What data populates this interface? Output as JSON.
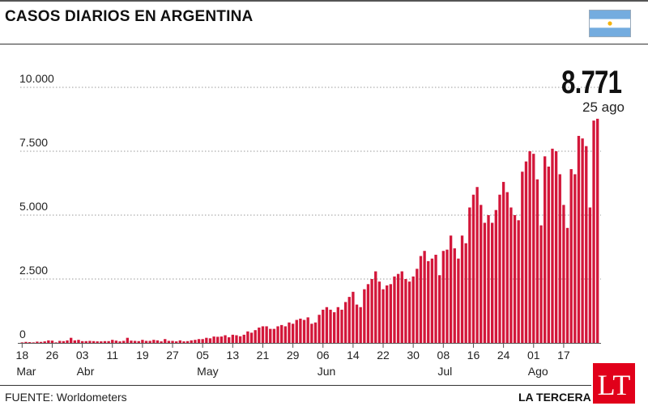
{
  "header": {
    "title": "CASOS DIARIOS EN ARGENTINA",
    "flag_icon": "argentina-flag-icon"
  },
  "annotation": {
    "value": "8.771",
    "date": "25 ago"
  },
  "footer": {
    "source": "FUENTE: Worldometers",
    "brand": "LA TERCERA",
    "logo_text": "LT"
  },
  "colors": {
    "bars": "#d3173a",
    "brand_red": "#e1001a",
    "flag_blue": "#74acdf",
    "flag_sun": "#f6b40e"
  },
  "chart_data": {
    "type": "bar",
    "title": "CASOS DIARIOS EN ARGENTINA",
    "xlabel": "",
    "ylabel": "",
    "ylim": [
      0,
      10000
    ],
    "grid": true,
    "legend": "none",
    "y_ticks": [
      {
        "value": 0,
        "label": "0"
      },
      {
        "value": 2500,
        "label": "2.500"
      },
      {
        "value": 5000,
        "label": "5.000"
      },
      {
        "value": 7500,
        "label": "7.500"
      },
      {
        "value": 10000,
        "label": "10.000"
      }
    ],
    "x_ticks": [
      {
        "index": 0,
        "label": "18"
      },
      {
        "index": 8,
        "label": "26"
      },
      {
        "index": 16,
        "label": "03"
      },
      {
        "index": 24,
        "label": "11"
      },
      {
        "index": 32,
        "label": "19"
      },
      {
        "index": 40,
        "label": "27"
      },
      {
        "index": 48,
        "label": "05"
      },
      {
        "index": 56,
        "label": "13"
      },
      {
        "index": 64,
        "label": "21"
      },
      {
        "index": 72,
        "label": "29"
      },
      {
        "index": 80,
        "label": "06"
      },
      {
        "index": 88,
        "label": "14"
      },
      {
        "index": 96,
        "label": "22"
      },
      {
        "index": 104,
        "label": "30"
      },
      {
        "index": 112,
        "label": "08"
      },
      {
        "index": 120,
        "label": "16"
      },
      {
        "index": 128,
        "label": "24"
      },
      {
        "index": 136,
        "label": "01"
      },
      {
        "index": 144,
        "label": "17"
      }
    ],
    "months": [
      {
        "index": 0,
        "label": "Mar"
      },
      {
        "index": 16,
        "label": "Abr"
      },
      {
        "index": 48,
        "label": "May"
      },
      {
        "index": 80,
        "label": "Jun"
      },
      {
        "index": 112,
        "label": "Jul"
      },
      {
        "index": 136,
        "label": "Ago"
      }
    ],
    "series": [
      {
        "values": [
          20,
          40,
          30,
          20,
          50,
          40,
          60,
          100,
          90,
          20,
          80,
          70,
          100,
          200,
          100,
          120,
          70,
          70,
          80,
          70,
          60,
          60,
          70,
          70,
          120,
          90,
          60,
          80,
          200,
          90,
          80,
          70,
          120,
          80,
          80,
          120,
          100,
          60,
          150,
          80,
          80,
          60,
          100,
          60,
          70,
          100,
          120,
          150,
          150,
          200,
          180,
          250,
          240,
          250,
          300,
          220,
          320,
          300,
          260,
          320,
          450,
          400,
          500,
          600,
          650,
          650,
          550,
          550,
          650,
          700,
          650,
          800,
          750,
          900,
          950,
          900,
          1000,
          750,
          800,
          1100,
          1300,
          1400,
          1300,
          1200,
          1400,
          1300,
          1600,
          1800,
          2000,
          1500,
          1400,
          2100,
          2300,
          2500,
          2800,
          2400,
          2100,
          2250,
          2300,
          2600,
          2700,
          2800,
          2500,
          2400,
          2600,
          2900,
          3400,
          3600,
          3200,
          3300,
          3450,
          2650,
          3600,
          3650,
          4200,
          3700,
          3300,
          4200,
          3900,
          5300,
          5800,
          6100,
          5400,
          4700,
          5000,
          4700,
          5200,
          5800,
          6300,
          5900,
          5300,
          5000,
          4800,
          6700,
          7100,
          7500,
          7400,
          6400,
          4600,
          7300,
          6900,
          7600,
          7500,
          6600,
          5400,
          4500,
          6800,
          6600,
          8100,
          8000,
          7700,
          5300,
          8700,
          8771
        ]
      }
    ]
  }
}
